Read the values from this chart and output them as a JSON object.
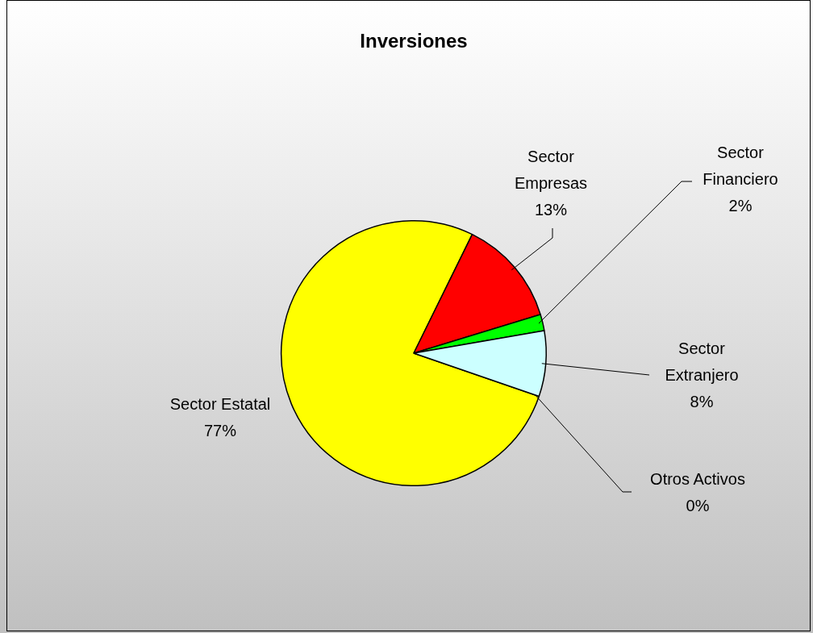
{
  "chart_data": {
    "type": "pie",
    "title": "Inversiones",
    "categories": [
      "Sector Estatal",
      "Sector Empresas",
      "Sector Financiero",
      "Sector Extranjero",
      "Otros Activos"
    ],
    "values": [
      77,
      13,
      2,
      8,
      0
    ],
    "colors": [
      "#ffff00",
      "#ff0000",
      "#00ff00",
      "#ccffff",
      "#3366ff"
    ],
    "value_labels": [
      "77%",
      "13%",
      "2%",
      "8%",
      "0%"
    ],
    "legend": false
  }
}
